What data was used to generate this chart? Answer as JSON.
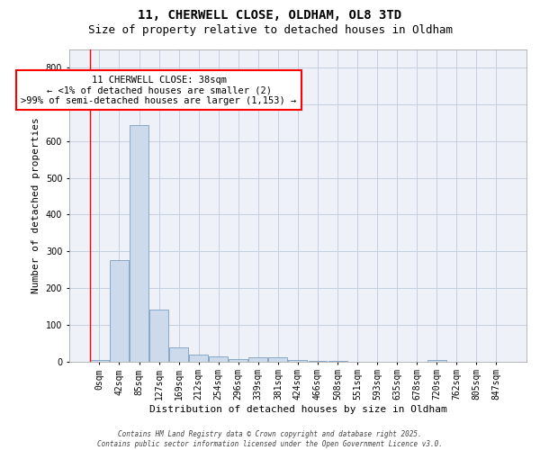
{
  "title1": "11, CHERWELL CLOSE, OLDHAM, OL8 3TD",
  "title2": "Size of property relative to detached houses in Oldham",
  "xlabel": "Distribution of detached houses by size in Oldham",
  "ylabel": "Number of detached properties",
  "bar_color": "#cddaeb",
  "bar_edge_color": "#7a9fc0",
  "categories": [
    "0sqm",
    "42sqm",
    "85sqm",
    "127sqm",
    "169sqm",
    "212sqm",
    "254sqm",
    "296sqm",
    "339sqm",
    "381sqm",
    "424sqm",
    "466sqm",
    "508sqm",
    "551sqm",
    "593sqm",
    "635sqm",
    "678sqm",
    "720sqm",
    "762sqm",
    "805sqm",
    "847sqm"
  ],
  "values": [
    5,
    275,
    645,
    140,
    38,
    18,
    13,
    7,
    12,
    10,
    3,
    2,
    1,
    0,
    0,
    0,
    0,
    5,
    0,
    0,
    0
  ],
  "ylim": [
    0,
    850
  ],
  "yticks": [
    0,
    100,
    200,
    300,
    400,
    500,
    600,
    700,
    800
  ],
  "annotation_text": "11 CHERWELL CLOSE: 38sqm\n← <1% of detached houses are smaller (2)\n>99% of semi-detached houses are larger (1,153) →",
  "bg_color": "#eef2f8",
  "grid_color": "#c5cfe0",
  "footer_text": "Contains HM Land Registry data © Crown copyright and database right 2025.\nContains public sector information licensed under the Open Government Licence v3.0.",
  "title_fontsize": 10,
  "subtitle_fontsize": 9,
  "axis_label_fontsize": 8,
  "tick_fontsize": 7,
  "annotation_fontsize": 7.5
}
